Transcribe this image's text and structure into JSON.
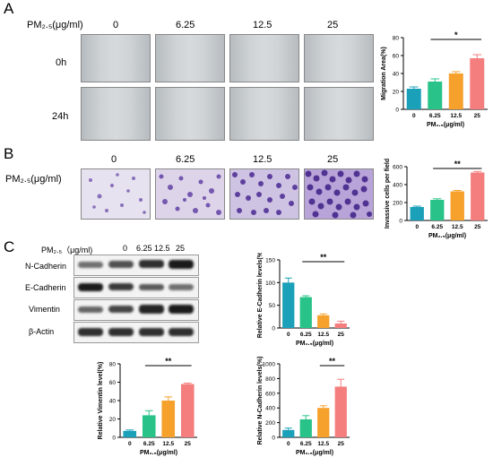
{
  "panels": {
    "A": {
      "letter": "A",
      "treatment_label": "PM₂.₅(μg/ml)",
      "concentrations": [
        "0",
        "6.25",
        "12.5",
        "25"
      ],
      "rows": [
        "0h",
        "24h"
      ]
    },
    "B": {
      "letter": "B",
      "treatment_label": "PM₂.₅(μg/ml)",
      "concentrations": [
        "0",
        "6.25",
        "12.5",
        "25"
      ]
    },
    "C": {
      "letter": "C",
      "treatment_label": "PM₂.₅（μg/ml)",
      "concentrations": [
        "0",
        "6.25",
        "12.5",
        "25"
      ],
      "proteins": [
        "N-Cadherin",
        "E-Cadherin",
        "Vimentin",
        "β-Actin"
      ]
    }
  },
  "colors": [
    "#1aa0b8",
    "#29c389",
    "#f5a12c",
    "#f47e7e"
  ],
  "chart_data": [
    {
      "id": "migration",
      "type": "bar",
      "categories": [
        "0",
        "6.25",
        "12.5",
        "25"
      ],
      "values": [
        23,
        31,
        40,
        57
      ],
      "errors": [
        2,
        3,
        2,
        4
      ],
      "ylabel": "Migration Area(%)",
      "xlabel": "PM₂.₅(μg/ml)",
      "ylim": [
        0,
        80
      ],
      "yticks": [
        "0",
        "20",
        "40",
        "60",
        "80"
      ],
      "significance": {
        "label": "*",
        "from": 1,
        "to": 3
      }
    },
    {
      "id": "invasion",
      "type": "bar",
      "categories": [
        "0",
        "6.25",
        "12.5",
        "25"
      ],
      "values": [
        150,
        230,
        325,
        535
      ],
      "errors": [
        10,
        12,
        10,
        12
      ],
      "ylabel": "Invassive cells per field",
      "xlabel": "PM₂.₅(μg/ml)",
      "ylim": [
        0,
        600
      ],
      "yticks": [
        "0",
        "200",
        "400",
        "600"
      ],
      "significance": {
        "label": "**",
        "from": 1,
        "to": 3
      }
    },
    {
      "id": "ecadherin",
      "type": "bar",
      "categories": [
        "0",
        "6.25",
        "12.5",
        "25"
      ],
      "values": [
        100,
        68,
        28,
        10
      ],
      "errors": [
        10,
        3,
        3,
        5
      ],
      "ylabel": "Relative E-Cadherin levels(%)",
      "xlabel": "PM₂.₅(μg/ml)",
      "ylim": [
        0,
        150
      ],
      "yticks": [
        "0",
        "50",
        "100",
        "150"
      ],
      "significance": {
        "label": "**",
        "from": 1,
        "to": 3
      }
    },
    {
      "id": "vimentin",
      "type": "bar",
      "categories": [
        "0",
        "6.25",
        "12.5",
        "25"
      ],
      "values": [
        7,
        24,
        40,
        58
      ],
      "errors": [
        1,
        5,
        4,
        1
      ],
      "ylabel": "Relative Vimentin level(%)",
      "xlabel": "PM₂.₅(μg/ml)",
      "ylim": [
        0,
        80
      ],
      "yticks": [
        "0",
        "20",
        "40",
        "60",
        "80"
      ],
      "significance": {
        "label": "**",
        "from": 1,
        "to": 3
      }
    },
    {
      "id": "ncadherin",
      "type": "bar",
      "categories": [
        "0",
        "6.25",
        "12.5",
        "25"
      ],
      "values": [
        100,
        245,
        400,
        690
      ],
      "errors": [
        25,
        50,
        30,
        100
      ],
      "ylabel": "Relative N-Cadherin levels(%)",
      "xlabel": "PM₂.₅(μg/ml)",
      "ylim": [
        0,
        1000
      ],
      "yticks": [
        "0",
        "200",
        "400",
        "600",
        "800",
        "1000"
      ],
      "significance": {
        "label": "**",
        "from": 2,
        "to": 3
      }
    }
  ]
}
